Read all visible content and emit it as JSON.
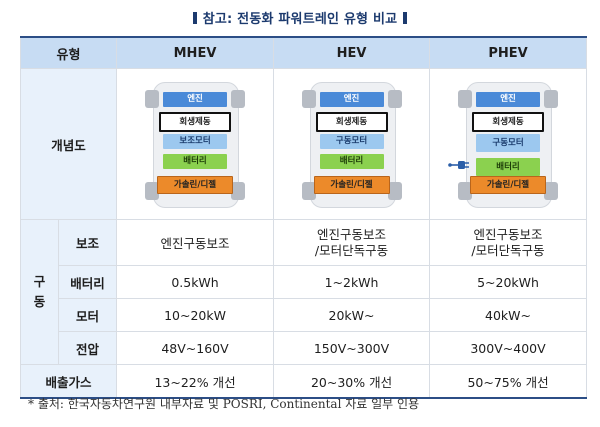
{
  "title": "참고: 전동화 파워트레인 유형 비교",
  "header": {
    "col0": "유형",
    "col1": "MHEV",
    "col2": "HEV",
    "col3": "PHEV"
  },
  "diagram_row": {
    "label": "개념도"
  },
  "diagrams": {
    "mhev": {
      "engine": "엔진",
      "regen": "회생제동",
      "motor": "보조모터",
      "battery": "배터리",
      "fuel": "가솔린/디젤"
    },
    "hev": {
      "engine": "엔진",
      "regen": "회생제동",
      "motor": "구동모터",
      "battery": "배터리",
      "fuel": "가솔린/디젤"
    },
    "phev": {
      "engine": "엔진",
      "regen": "회생제동",
      "motor": "구동모터",
      "battery": "배터리",
      "fuel": "가솔린/디젤"
    }
  },
  "group_label": "구동",
  "rows": {
    "assist": {
      "label": "보조",
      "mhev": "엔진구동보조",
      "hev_l1": "엔진구동보조",
      "hev_l2": "/모터단독구동",
      "phev_l1": "엔진구동보조",
      "phev_l2": "/모터단독구동"
    },
    "battery": {
      "label": "배터리",
      "mhev": "0.5kWh",
      "hev": "1~2kWh",
      "phev": "5~20kWh"
    },
    "motor": {
      "label": "모터",
      "mhev": "10~20kW",
      "hev": "20kW~",
      "phev": "40kW~"
    },
    "voltage": {
      "label": "전압",
      "mhev": "48V~160V",
      "hev": "150V~300V",
      "phev": "300V~400V"
    }
  },
  "emissions": {
    "label": "배출가스",
    "mhev": "13~22% 개선",
    "hev": "20~30% 개선",
    "phev": "50~75% 개선"
  },
  "footnote": "* 출처: 한국자동차연구원 내부자료 및 POSRI, Continental 자료 일부 인용"
}
